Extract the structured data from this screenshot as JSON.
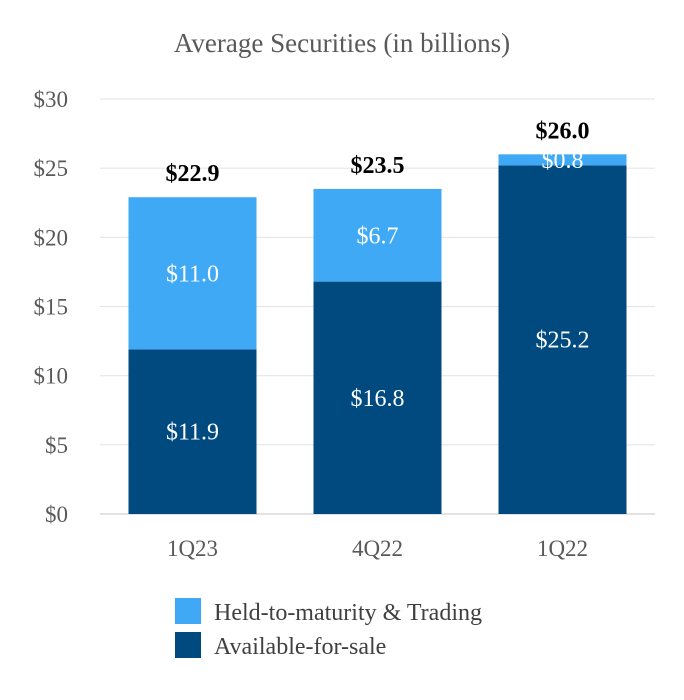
{
  "chart_data": {
    "type": "bar",
    "stacked": true,
    "title": "Average Securities (in billions)",
    "xlabel": "",
    "ylabel": "",
    "ylim": [
      0,
      30
    ],
    "yticks": [
      0,
      5,
      10,
      15,
      20,
      25,
      30
    ],
    "ytick_labels": [
      "$0",
      "$5",
      "$10",
      "$15",
      "$20",
      "$25",
      "$30"
    ],
    "categories": [
      "1Q23",
      "4Q22",
      "1Q22"
    ],
    "series": [
      {
        "name": "Available-for-sale",
        "color": "#004a80",
        "values": [
          11.9,
          16.8,
          25.2
        ],
        "labels": [
          "$11.9",
          "$16.8",
          "$25.2"
        ]
      },
      {
        "name": "Held-to-maturity & Trading",
        "color": "#3fa9f5",
        "values": [
          11.0,
          6.7,
          0.8
        ],
        "labels": [
          "$11.0",
          "$6.7",
          "$0.8"
        ]
      }
    ],
    "totals": [
      22.9,
      23.5,
      26.0
    ],
    "total_labels": [
      "$22.9",
      "$23.5",
      "$26.0"
    ],
    "legend": {
      "position": "bottom",
      "entries": [
        "Held-to-maturity & Trading",
        "Available-for-sale"
      ]
    },
    "grid": true,
    "gridline_color": "#e6e6e6"
  }
}
